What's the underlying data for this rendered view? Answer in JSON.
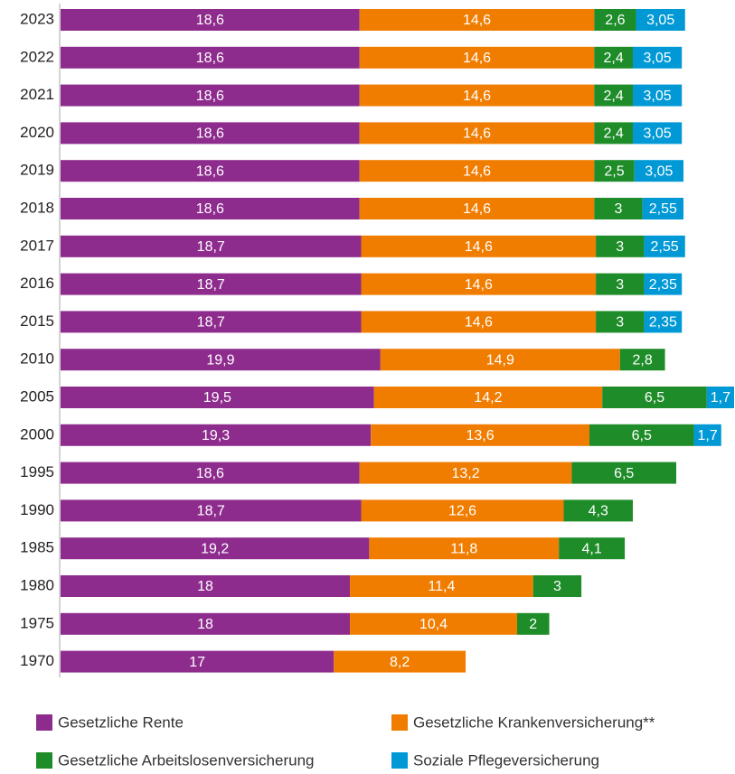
{
  "chart_data": {
    "type": "bar",
    "orientation": "horizontal",
    "stacked": true,
    "categories": [
      "2023",
      "2022",
      "2021",
      "2020",
      "2019",
      "2018",
      "2017",
      "2016",
      "2015",
      "2010",
      "2005",
      "2000",
      "1995",
      "1990",
      "1985",
      "1980",
      "1975",
      "1970"
    ],
    "series": [
      {
        "name": "Gesetzliche Rente",
        "color": "#8e2c8e",
        "values": [
          18.6,
          18.6,
          18.6,
          18.6,
          18.6,
          18.6,
          18.7,
          18.7,
          18.7,
          19.9,
          19.5,
          19.3,
          18.6,
          18.7,
          19.2,
          18,
          18,
          17
        ],
        "value_labels": [
          "18,6",
          "18,6",
          "18,6",
          "18,6",
          "18,6",
          "18,6",
          "18,7",
          "18,7",
          "18,7",
          "19,9",
          "19,5",
          "19,3",
          "18,6",
          "18,7",
          "19,2",
          "18",
          "18",
          "17"
        ]
      },
      {
        "name": "Gesetzliche Krankenversicherung**",
        "color": "#f07d00",
        "values": [
          14.6,
          14.6,
          14.6,
          14.6,
          14.6,
          14.6,
          14.6,
          14.6,
          14.6,
          14.9,
          14.2,
          13.6,
          13.2,
          12.6,
          11.8,
          11.4,
          10.4,
          8.2
        ],
        "value_labels": [
          "14,6",
          "14,6",
          "14,6",
          "14,6",
          "14,6",
          "14,6",
          "14,6",
          "14,6",
          "14,6",
          "14,9",
          "14,2",
          "13,6",
          "13,2",
          "12,6",
          "11,8",
          "11,4",
          "10,4",
          "8,2"
        ]
      },
      {
        "name": "Gesetzliche Arbeitslosenversicherung",
        "color": "#1e8c28",
        "values": [
          2.6,
          2.4,
          2.4,
          2.4,
          2.5,
          3,
          3,
          3,
          3,
          2.8,
          6.5,
          6.5,
          6.5,
          4.3,
          4.1,
          3,
          2,
          null
        ],
        "value_labels": [
          "2,6",
          "2,4",
          "2,4",
          "2,4",
          "2,5",
          "3",
          "3",
          "3",
          "3",
          "2,8",
          "6,5",
          "6,5",
          "6,5",
          "4,3",
          "4,1",
          "3",
          "2",
          null
        ]
      },
      {
        "name": "Soziale Pflegeversicherung",
        "color": "#0099d6",
        "values": [
          3.05,
          3.05,
          3.05,
          3.05,
          3.05,
          2.55,
          2.55,
          2.35,
          2.35,
          null,
          1.7,
          1.7,
          null,
          null,
          null,
          null,
          null,
          null
        ],
        "value_labels": [
          "3,05",
          "3,05",
          "3,05",
          "3,05",
          "3,05",
          "2,55",
          "2,55",
          "2,35",
          "2,35",
          null,
          "1,7",
          "1,7",
          null,
          null,
          null,
          null,
          null,
          null
        ]
      }
    ]
  }
}
